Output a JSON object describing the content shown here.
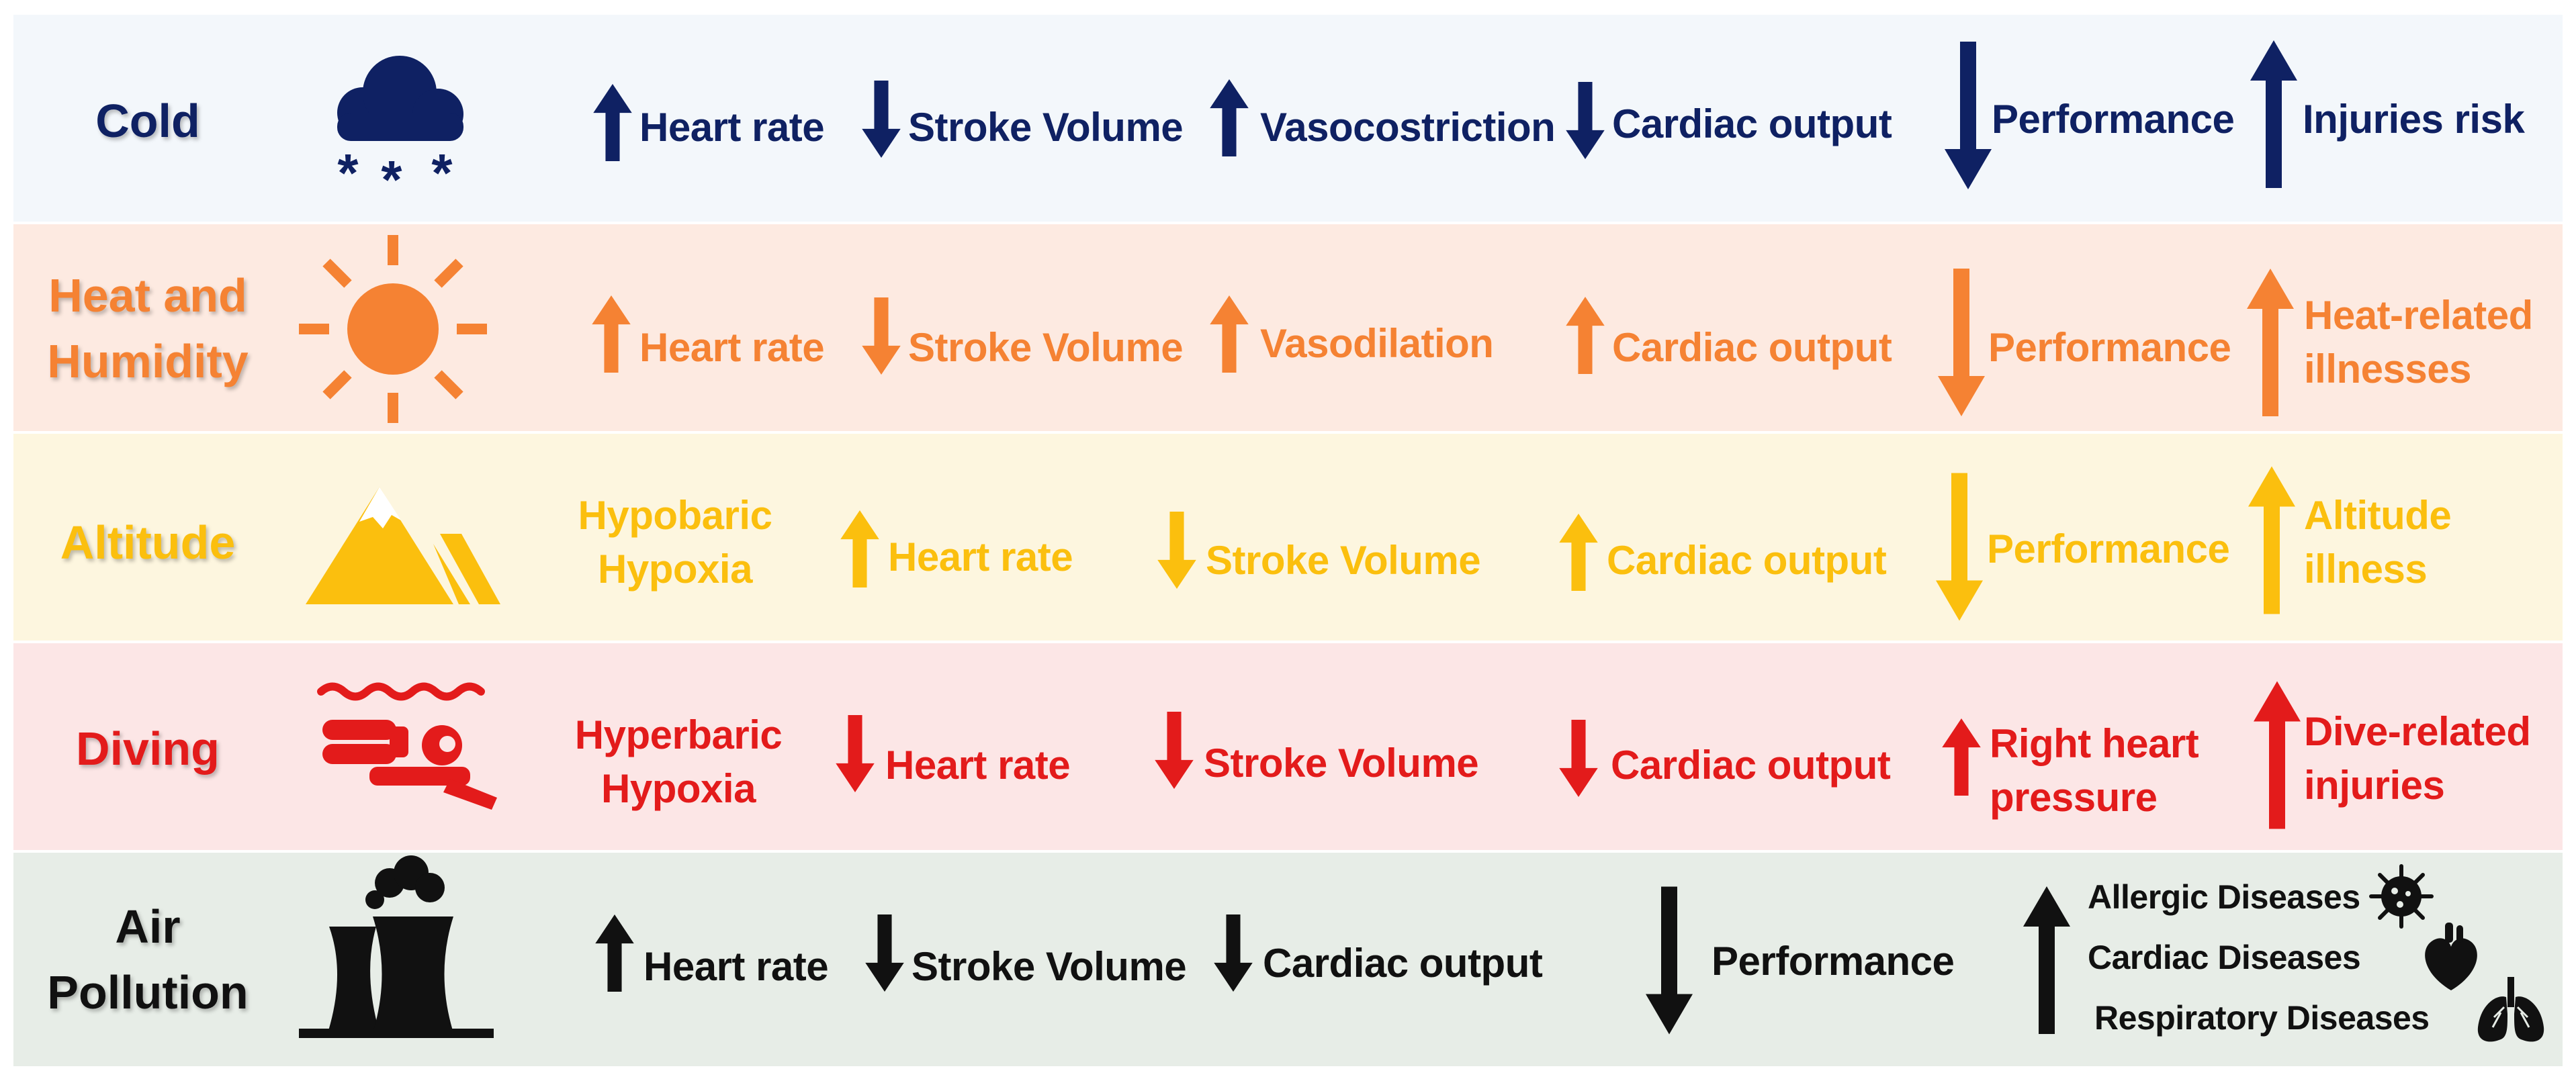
{
  "colors": {
    "cold": "#0f2163",
    "heat": "#f58233",
    "altitude": "#fbbf0e",
    "diving": "#e31b1b",
    "pollution": "#111111",
    "cold_bg": "#f3f7fb",
    "heat_bg": "#fdeae1",
    "altitude_bg": "#fdf6df",
    "diving_bg": "#fce6e6",
    "pollution_bg": "#e7ede7"
  },
  "rows": {
    "cold": {
      "category": "Cold",
      "icon": "snow-cloud-icon",
      "effects": {
        "heart_rate": {
          "label": "Heart rate",
          "direction": "up"
        },
        "stroke_volume": {
          "label": "Stroke Volume",
          "direction": "down"
        },
        "vasoconstriction": {
          "label": "Vasocostriction",
          "direction": "up"
        },
        "cardiac_output": {
          "label": "Cardiac output",
          "direction": "down"
        },
        "performance": {
          "label": "Performance",
          "direction": "down"
        },
        "injuries_risk": {
          "label": "Injuries risk",
          "direction": "up"
        }
      }
    },
    "heat": {
      "category_line1": "Heat and",
      "category_line2": "Humidity",
      "icon": "sun-icon",
      "effects": {
        "heart_rate": {
          "label": "Heart rate",
          "direction": "up"
        },
        "stroke_volume": {
          "label": "Stroke Volume",
          "direction": "down"
        },
        "vasodilation": {
          "label": "Vasodilation",
          "direction": "up"
        },
        "cardiac_output": {
          "label": "Cardiac output",
          "direction": "up"
        },
        "performance": {
          "label": "Performance",
          "direction": "down"
        },
        "heat_illness_line1": "Heat-related",
        "heat_illness_line2": "illnesses",
        "heat_illness_direction": "up"
      }
    },
    "altitude": {
      "category": "Altitude",
      "icon": "mountain-icon",
      "condition_line1": "Hypobaric",
      "condition_line2": "Hypoxia",
      "effects": {
        "heart_rate": {
          "label": "Heart rate",
          "direction": "up"
        },
        "stroke_volume": {
          "label": "Stroke Volume",
          "direction": "down"
        },
        "cardiac_output": {
          "label": "Cardiac output",
          "direction": "up"
        },
        "performance": {
          "label": "Performance",
          "direction": "down"
        },
        "illness_line1": "Altitude",
        "illness_line2": "illness",
        "illness_direction": "up"
      }
    },
    "diving": {
      "category": "Diving",
      "icon": "diver-icon",
      "condition_line1": "Hyperbaric",
      "condition_line2": "Hypoxia",
      "effects": {
        "heart_rate": {
          "label": "Heart rate",
          "direction": "down"
        },
        "stroke_volume": {
          "label": "Stroke Volume",
          "direction": "down"
        },
        "cardiac_output": {
          "label": "Cardiac output",
          "direction": "down"
        },
        "rhp_line1": "Right heart",
        "rhp_line2": "pressure",
        "rhp_direction": "up",
        "injury_line1": "Dive-related",
        "injury_line2": "injuries",
        "injury_direction": "up"
      }
    },
    "pollution": {
      "category_line1": "Air",
      "category_line2": "Pollution",
      "icon": "factory-icon",
      "effects": {
        "heart_rate": {
          "label": "Heart rate",
          "direction": "up"
        },
        "stroke_volume": {
          "label": "Stroke Volume",
          "direction": "down"
        },
        "cardiac_output": {
          "label": "Cardiac output",
          "direction": "down"
        },
        "performance": {
          "label": "Performance",
          "direction": "down"
        },
        "diseases_direction": "up",
        "allergic": "Allergic Diseases",
        "cardiac": "Cardiac Diseases",
        "respiratory": "Respiratory Diseases"
      }
    }
  }
}
